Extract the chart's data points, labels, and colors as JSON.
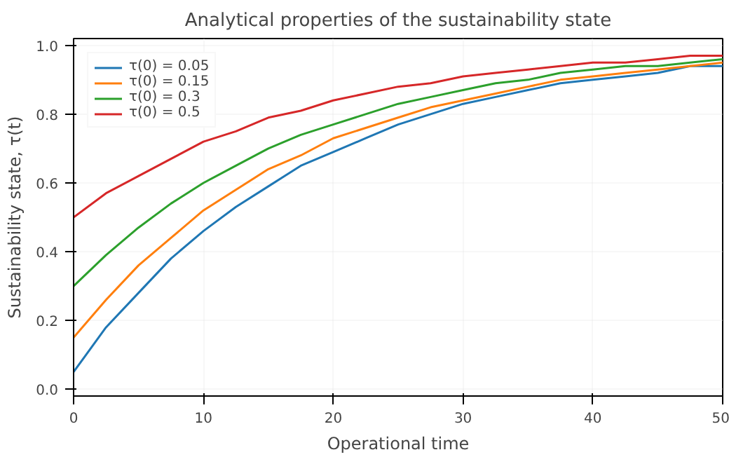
{
  "chart_data": {
    "type": "line",
    "title": "Analytical properties of the sustainability state",
    "xlabel": "Operational time",
    "ylabel": "Sustainability state, τ(t)",
    "x": [
      0,
      2.5,
      5,
      7.5,
      10,
      12.5,
      15,
      17.5,
      20,
      22.5,
      25,
      27.5,
      30,
      32.5,
      35,
      37.5,
      40,
      42.5,
      45,
      47.5,
      50
    ],
    "series": [
      {
        "name": "τ(0) = 0.05",
        "color": "#1f77b4",
        "values": [
          0.05,
          0.18,
          0.28,
          0.38,
          0.46,
          0.53,
          0.59,
          0.65,
          0.69,
          0.73,
          0.77,
          0.8,
          0.83,
          0.85,
          0.87,
          0.89,
          0.9,
          0.91,
          0.92,
          0.94,
          0.94
        ]
      },
      {
        "name": "τ(0) = 0.15",
        "color": "#ff7f0e",
        "values": [
          0.15,
          0.26,
          0.36,
          0.44,
          0.52,
          0.58,
          0.64,
          0.68,
          0.73,
          0.76,
          0.79,
          0.82,
          0.84,
          0.86,
          0.88,
          0.9,
          0.91,
          0.92,
          0.93,
          0.94,
          0.95
        ]
      },
      {
        "name": "τ(0) = 0.3",
        "color": "#2ca02c",
        "values": [
          0.3,
          0.39,
          0.47,
          0.54,
          0.6,
          0.65,
          0.7,
          0.74,
          0.77,
          0.8,
          0.83,
          0.85,
          0.87,
          0.89,
          0.9,
          0.92,
          0.93,
          0.94,
          0.94,
          0.95,
          0.96
        ]
      },
      {
        "name": "τ(0) = 0.5",
        "color": "#d62728",
        "values": [
          0.5,
          0.57,
          0.62,
          0.67,
          0.72,
          0.75,
          0.79,
          0.81,
          0.84,
          0.86,
          0.88,
          0.89,
          0.91,
          0.92,
          0.93,
          0.94,
          0.95,
          0.95,
          0.96,
          0.97,
          0.97
        ]
      }
    ],
    "xlim": [
      0,
      50
    ],
    "xticks": [
      0,
      10,
      20,
      30,
      40,
      50
    ],
    "ylim": [
      -0.02,
      1.02
    ],
    "yticks": [
      {
        "value": 0,
        "label": "0.0"
      },
      {
        "value": 0.2,
        "label": "0.2"
      },
      {
        "value": 0.4,
        "label": "0.4"
      },
      {
        "value": 0.6,
        "label": "0.6"
      },
      {
        "value": 0.8,
        "label": "0.8"
      },
      {
        "value": 1,
        "label": "1.0"
      }
    ],
    "grid": true,
    "legend": "top left"
  }
}
